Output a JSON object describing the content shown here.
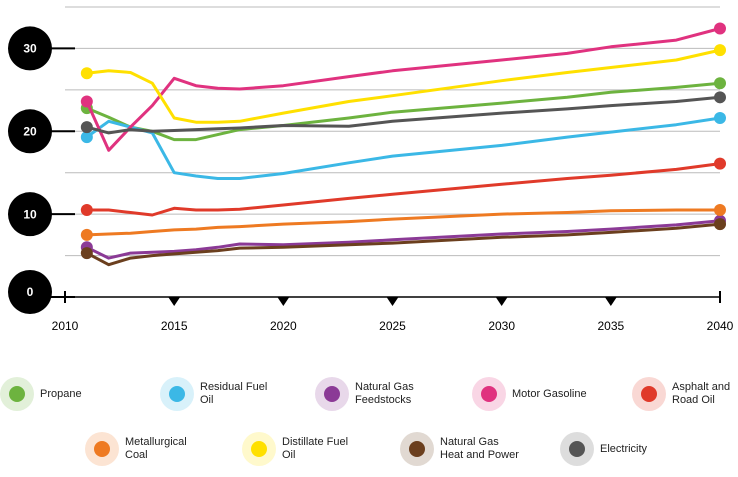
{
  "chart_data": {
    "type": "line",
    "x": [
      2011,
      2012,
      2013,
      2014,
      2015,
      2016,
      2017,
      2018,
      2020,
      2023,
      2025,
      2030,
      2033,
      2035,
      2038,
      2040
    ],
    "xlim": [
      2010,
      2040
    ],
    "xticks": [
      2010,
      2015,
      2020,
      2025,
      2030,
      2035,
      2040
    ],
    "ylim": [
      0,
      35
    ],
    "yticks": [
      0,
      10,
      20,
      30
    ],
    "yminorticks": [
      5,
      15,
      25,
      35
    ],
    "grid": true,
    "series": [
      {
        "name": "Propane",
        "color": "#6db33f",
        "values": [
          22.8,
          21.7,
          20.5,
          20,
          19,
          19,
          19.6,
          20.2,
          20.7,
          21.6,
          22.3,
          23.4,
          24.1,
          24.7,
          25.3,
          25.8
        ]
      },
      {
        "name": "Residual Fuel Oil",
        "color": "#3bb8e6",
        "values": [
          19.3,
          21.2,
          20.5,
          19.8,
          15,
          14.6,
          14.3,
          14.3,
          14.9,
          16.2,
          17,
          18.3,
          19.3,
          19.9,
          20.8,
          21.6
        ]
      },
      {
        "name": "Natural Gas Feedstocks",
        "color": "#8b3a96",
        "values": [
          6,
          4.7,
          5.3,
          5.4,
          5.5,
          5.7,
          6,
          6.4,
          6.3,
          6.6,
          6.9,
          7.6,
          7.9,
          8.2,
          8.7,
          9.2
        ]
      },
      {
        "name": "Motor Gasoline",
        "color": "#e0327f",
        "values": [
          23.6,
          17.7,
          20.5,
          23.1,
          26.4,
          25.5,
          25.2,
          25.1,
          25.5,
          26.6,
          27.3,
          28.6,
          29.4,
          30.2,
          31,
          32.4
        ]
      },
      {
        "name": "Asphalt and Road Oil",
        "color": "#e03a2a",
        "values": [
          10.5,
          10.5,
          10.2,
          9.9,
          10.7,
          10.5,
          10.5,
          10.6,
          11.1,
          11.9,
          12.4,
          13.6,
          14.3,
          14.7,
          15.4,
          16.1
        ]
      },
      {
        "name": "Metallurgical Coal",
        "color": "#ee7a22",
        "values": [
          7.5,
          7.6,
          7.7,
          7.9,
          8.1,
          8.2,
          8.4,
          8.5,
          8.8,
          9.1,
          9.4,
          10,
          10.2,
          10.4,
          10.5,
          10.5
        ]
      },
      {
        "name": "Distillate Fuel Oil",
        "color": "#ffe000",
        "values": [
          27,
          27.3,
          27.1,
          25.8,
          21.6,
          21.1,
          21.1,
          21.2,
          22.2,
          23.6,
          24.3,
          26.1,
          27.1,
          27.7,
          28.6,
          29.8
        ]
      },
      {
        "name": "Natural Gas Heat and Power",
        "color": "#6b3f1e",
        "values": [
          5.3,
          3.9,
          4.7,
          5,
          5.2,
          5.4,
          5.6,
          5.9,
          6,
          6.3,
          6.5,
          7.2,
          7.5,
          7.8,
          8.3,
          8.8
        ]
      },
      {
        "name": "Electricity",
        "color": "#555555",
        "values": [
          20.5,
          19.8,
          20.2,
          20,
          20.1,
          20.2,
          20.3,
          20.4,
          20.7,
          20.6,
          21.2,
          22.2,
          22.7,
          23.1,
          23.6,
          24.1
        ]
      }
    ]
  }
}
